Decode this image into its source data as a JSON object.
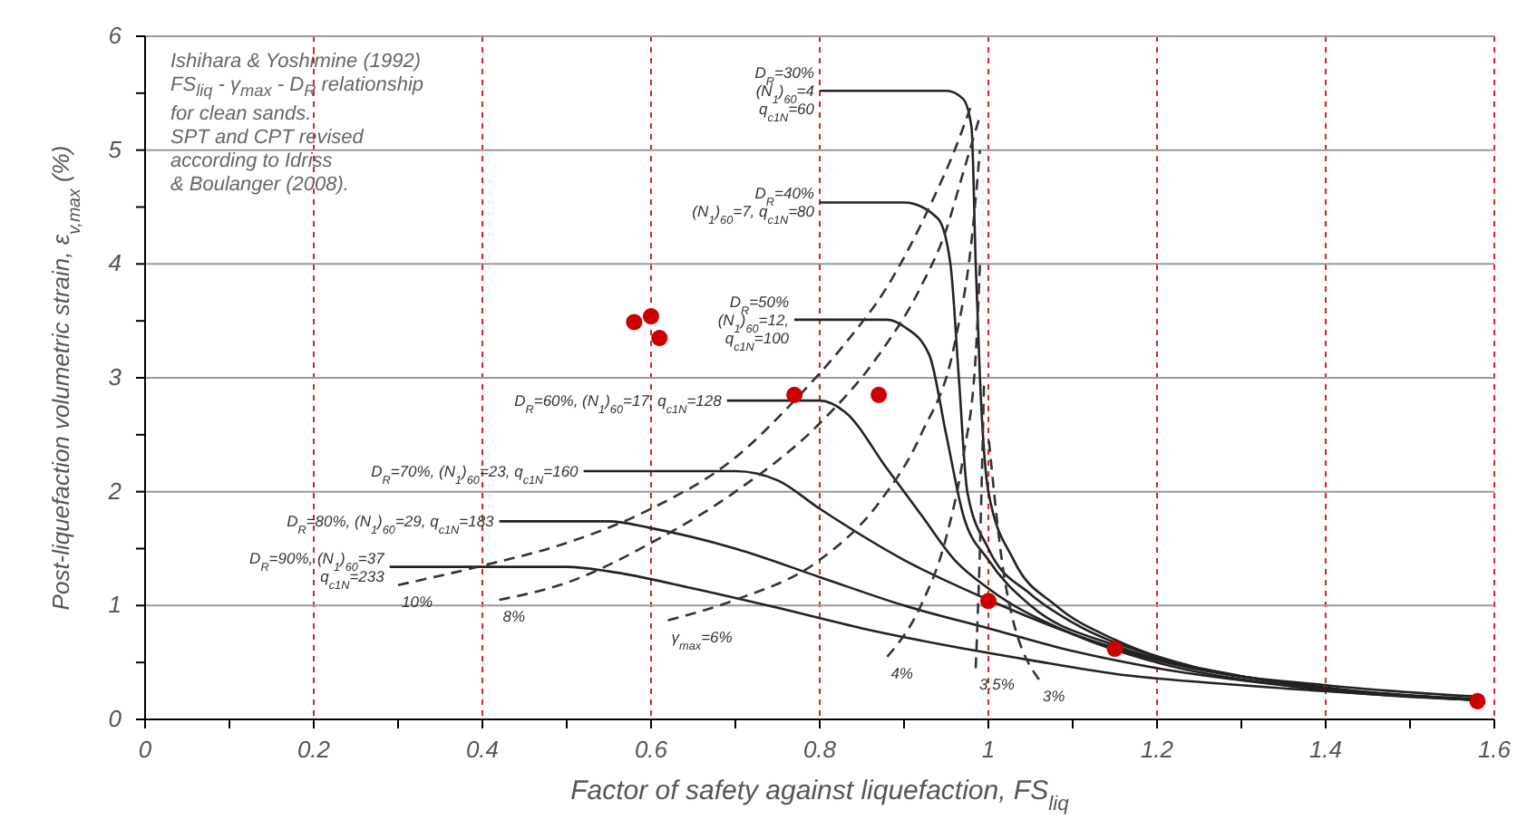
{
  "chart_data": {
    "type": "line",
    "xlabel": "Factor of safety against liquefaction, FS$_{liq}$",
    "ylabel": "Post-liquefaction volumetric strain, ε$_{v,max}$ (%)",
    "annotations": [
      "Ishihara & Yoshimine (1992)",
      "FS$_{liq}$ - γ$_{max}$ - D$_{R}$ relationship",
      "for clean sands.",
      "SPT and CPT revised",
      "according to Idriss",
      "& Boulanger (2008)."
    ],
    "xlim": [
      0,
      1.6
    ],
    "xticks": [
      0,
      {
        "value": 0.1,
        "label": null
      },
      0.2,
      {
        "value": 0.3,
        "label": null
      },
      0.4,
      {
        "value": 0.5,
        "label": null
      },
      0.6,
      {
        "value": 0.7,
        "label": null
      },
      0.8,
      {
        "value": 0.9,
        "label": null
      },
      1,
      {
        "value": 1.1,
        "label": null
      },
      1.2,
      {
        "value": 1.3,
        "label": null
      },
      1.4,
      {
        "value": 1.5,
        "label": null
      },
      1.6
    ],
    "ylim": [
      0,
      6
    ],
    "yticks": [
      0,
      {
        "value": 0.5,
        "label": null
      },
      1,
      {
        "value": 1.5,
        "label": null
      },
      2,
      {
        "value": 2.5,
        "label": null
      },
      3,
      {
        "value": 3.5,
        "label": null
      },
      4,
      {
        "value": 4.5,
        "label": null
      },
      5,
      {
        "value": 5.5,
        "label": null
      },
      6
    ],
    "grid": true,
    "series": [
      {
        "name": "D$_{R}$=30%\n(N$_{1}$)$_{60}$=4\nq$_{c1N}$=60",
        "color": "#222222",
        "line_style": "solid",
        "marker": "none",
        "x": [
          0.8,
          0.95,
          0.97,
          0.98,
          0.985,
          0.99,
          1.0,
          1.03,
          1.08,
          1.15,
          1.25,
          1.4,
          1.58
        ],
        "values": [
          5.52,
          5.52,
          5.45,
          5.2,
          4,
          3,
          2,
          1.4,
          1.0,
          0.7,
          0.45,
          0.3,
          0.2
        ]
      },
      {
        "name": "D$_{R}$=40%\n(N$_{1}$)$_{60}$=7, q$_{c1N}$=80",
        "color": "#222222",
        "line_style": "solid",
        "marker": "none",
        "x": [
          0.8,
          0.9,
          0.94,
          0.955,
          0.965,
          0.975,
          1.0,
          1.05,
          1.1,
          1.2,
          1.4,
          1.58
        ],
        "values": [
          4.54,
          4.54,
          4.4,
          4,
          3,
          2,
          1.5,
          1.1,
          0.85,
          0.55,
          0.28,
          0.18
        ]
      },
      {
        "name": "D$_{R}$=50%\n(N$_{1}$)$_{60}$=12,\nq$_{c1N}$=100",
        "color": "#222222",
        "line_style": "solid",
        "marker": "none",
        "x": [
          0.77,
          0.88,
          0.9,
          0.93,
          0.95,
          0.97,
          1.0,
          1.05,
          1.15,
          1.3,
          1.58
        ],
        "values": [
          3.51,
          3.51,
          3.45,
          3.2,
          2.5,
          1.8,
          1.4,
          1.0,
          0.65,
          0.38,
          0.17
        ]
      },
      {
        "name": "D$_{R}$=60%, (N$_{1}$)$_{60}$=17, q$_{c1N}$=128",
        "color": "#222222",
        "line_style": "solid",
        "marker": "none",
        "x": [
          0.69,
          0.8,
          0.83,
          0.88,
          0.92,
          0.96,
          1.0,
          1.1,
          1.2,
          1.35,
          1.58
        ],
        "values": [
          2.8,
          2.8,
          2.7,
          2.2,
          1.8,
          1.4,
          1.15,
          0.75,
          0.5,
          0.3,
          0.17
        ]
      },
      {
        "name": "D$_{R}$=70%, (N$_{1}$)$_{60}$=23, q$_{c1N}$=160",
        "color": "#222222",
        "line_style": "solid",
        "marker": "none",
        "x": [
          0.52,
          0.7,
          0.75,
          0.8,
          0.9,
          1.0,
          1.1,
          1.2,
          1.35,
          1.58
        ],
        "values": [
          2.18,
          2.18,
          2.1,
          1.85,
          1.4,
          1.05,
          0.75,
          0.52,
          0.32,
          0.17
        ]
      },
      {
        "name": "D$_{R}$=80%, (N$_{1}$)$_{60}$=29, q$_{c1N}$=183",
        "color": "#222222",
        "line_style": "solid",
        "marker": "none",
        "x": [
          0.42,
          0.55,
          0.6,
          0.7,
          0.8,
          0.9,
          1.0,
          1.1,
          1.2,
          1.35,
          1.58
        ],
        "values": [
          1.74,
          1.74,
          1.68,
          1.5,
          1.25,
          1.0,
          0.8,
          0.6,
          0.45,
          0.3,
          0.17
        ]
      },
      {
        "name": "D$_{R}$=90%, (N$_{1}$)$_{60}$=37\nq$_{c1N}$=233",
        "color": "#222222",
        "line_style": "solid",
        "marker": "none",
        "x": [
          0.29,
          0.5,
          0.55,
          0.65,
          0.75,
          0.85,
          0.95,
          1.05,
          1.15,
          1.3,
          1.58
        ],
        "values": [
          1.34,
          1.34,
          1.3,
          1.15,
          0.98,
          0.8,
          0.65,
          0.52,
          0.4,
          0.3,
          0.17
        ]
      },
      {
        "name": "10%",
        "color": "#333333",
        "line_style": "dashed",
        "marker": "none",
        "x": [
          0.3,
          0.4,
          0.5,
          0.6,
          0.7,
          0.77,
          0.83,
          0.88,
          0.93,
          0.96,
          0.98
        ],
        "values": [
          1.18,
          1.35,
          1.55,
          1.85,
          2.3,
          2.8,
          3.3,
          3.8,
          4.5,
          5.0,
          5.4
        ]
      },
      {
        "name": "8%",
        "color": "#333333",
        "line_style": "dashed",
        "marker": "none",
        "x": [
          0.42,
          0.5,
          0.6,
          0.7,
          0.8,
          0.87,
          0.92,
          0.95,
          0.97,
          0.99
        ],
        "values": [
          1.05,
          1.2,
          1.55,
          2.0,
          2.6,
          3.2,
          3.8,
          4.3,
          4.8,
          5.3
        ]
      },
      {
        "name": "γ$_{max}$=6%",
        "color": "#333333",
        "line_style": "dashed",
        "marker": "none",
        "x": [
          0.62,
          0.7,
          0.8,
          0.87,
          0.92,
          0.96,
          0.98,
          0.99
        ],
        "values": [
          0.87,
          1.05,
          1.4,
          1.9,
          2.5,
          3.3,
          4.2,
          5.0
        ]
      },
      {
        "name": "4%",
        "color": "#333333",
        "line_style": "dashed",
        "marker": "none",
        "x": [
          0.88,
          0.92,
          0.95,
          0.97,
          0.985,
          0.99
        ],
        "values": [
          0.55,
          1.0,
          1.6,
          2.3,
          3.2,
          4.0
        ]
      },
      {
        "name": "3.5%",
        "color": "#333333",
        "line_style": "dashed",
        "marker": "none",
        "x": [
          0.985,
          0.99,
          0.995
        ],
        "values": [
          0.45,
          1.5,
          3.0
        ]
      },
      {
        "name": "3%",
        "color": "#333333",
        "line_style": "dashed",
        "marker": "none",
        "x": [
          1.06,
          1.02,
          1.0
        ],
        "values": [
          0.35,
          1.2,
          2.5
        ]
      },
      {
        "type": "scatter",
        "color": "#cc0000",
        "marker": "circle",
        "x": [
          0.58,
          0.6,
          0.61,
          0.77,
          0.87,
          1.0,
          1.15,
          1.58
        ],
        "values": [
          3.49,
          3.54,
          3.35,
          2.85,
          2.85,
          1.04,
          0.62,
          0.16
        ]
      }
    ]
  }
}
